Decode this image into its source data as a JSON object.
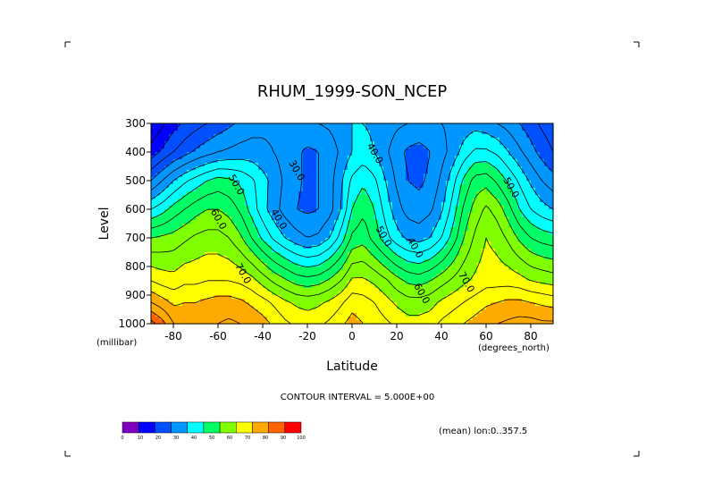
{
  "chart_data": {
    "type": "heatmap",
    "title": "RHUM_1999-SON_NCEP",
    "xlabel": "Latitude",
    "ylabel": "Level",
    "xunits": "(degrees_north)",
    "yunits": "(millibar)",
    "xlim": [
      -90,
      90
    ],
    "ylim": [
      1000,
      300
    ],
    "xticks": [
      "-80",
      "-60",
      "-40",
      "-20",
      "0",
      "20",
      "40",
      "60",
      "80"
    ],
    "xtick_values": [
      -80,
      -60,
      -40,
      -20,
      0,
      20,
      40,
      60,
      80
    ],
    "yticks": [
      "300",
      "400",
      "500",
      "600",
      "700",
      "800",
      "900",
      "1000"
    ],
    "ytick_values": [
      300,
      400,
      500,
      600,
      700,
      800,
      900,
      1000
    ],
    "contour_interval_text": "CONTOUR INTERVAL = 5.000E+00",
    "mean_text": "(mean) lon:0..357.5",
    "contour_labels": [
      "30.0",
      "50.0",
      "40.0",
      "60.0",
      "40.0",
      "50.0",
      "40.0",
      "50.0",
      "70.0",
      "70.0",
      "60.0"
    ],
    "colorbar": {
      "ticks": [
        "0",
        "10",
        "20",
        "30",
        "40",
        "50",
        "60",
        "70",
        "80",
        "90",
        "100"
      ],
      "colors": [
        "#7f00bf",
        "#0000ff",
        "#0050ff",
        "#0096ff",
        "#00ffff",
        "#00ff64",
        "#7fff00",
        "#ffff00",
        "#ffaa00",
        "#ff6400",
        "#ff0000"
      ]
    },
    "latitudes": [
      -90,
      -85,
      -80,
      -75,
      -70,
      -65,
      -60,
      -55,
      -50,
      -45,
      -40,
      -35,
      -30,
      -25,
      -20,
      -15,
      -10,
      -5,
      0,
      5,
      10,
      15,
      20,
      25,
      30,
      35,
      40,
      45,
      50,
      55,
      60,
      65,
      70,
      75,
      80,
      85,
      90
    ],
    "levels": [
      1000,
      925,
      850,
      700,
      600,
      500,
      400,
      300
    ],
    "values": [
      [
        97,
        92,
        85,
        83,
        82,
        83,
        85,
        86,
        85,
        84,
        82,
        79,
        76,
        74,
        73,
        74,
        76,
        79,
        82,
        80,
        78,
        76,
        74,
        72,
        72,
        73,
        76,
        78,
        80,
        82,
        84,
        85,
        86,
        87,
        87,
        86,
        86
      ],
      [
        85,
        82,
        79,
        80,
        80,
        81,
        82,
        82,
        81,
        79,
        77,
        74,
        71,
        69,
        68,
        69,
        71,
        74,
        78,
        77,
        75,
        72,
        69,
        67,
        67,
        68,
        71,
        73,
        75,
        77,
        79,
        80,
        81,
        81,
        80,
        79,
        78
      ],
      [
        75,
        73,
        72,
        74,
        74,
        75,
        75,
        75,
        74,
        72,
        68,
        64,
        61,
        58,
        57,
        58,
        61,
        65,
        71,
        71,
        69,
        66,
        62,
        59,
        58,
        60,
        63,
        66,
        69,
        71,
        73,
        73,
        73,
        72,
        70,
        69,
        68
      ],
      [
        60,
        61,
        62,
        64,
        66,
        67,
        67,
        65,
        61,
        55,
        49,
        44,
        40,
        37,
        35,
        36,
        40,
        47,
        56,
        58,
        53,
        47,
        42,
        39,
        38,
        40,
        45,
        52,
        60,
        66,
        70,
        68,
        64,
        59,
        55,
        53,
        52
      ],
      [
        45,
        48,
        52,
        55,
        58,
        60,
        60,
        58,
        54,
        48,
        42,
        37,
        33,
        30,
        29,
        30,
        33,
        40,
        50,
        54,
        50,
        43,
        37,
        33,
        32,
        34,
        39,
        47,
        56,
        62,
        66,
        63,
        57,
        50,
        45,
        42,
        40
      ],
      [
        30,
        35,
        40,
        44,
        47,
        50,
        52,
        51,
        49,
        46,
        42,
        38,
        34,
        31,
        29,
        30,
        33,
        39,
        46,
        49,
        46,
        40,
        34,
        30,
        29,
        31,
        36,
        43,
        51,
        57,
        58,
        54,
        49,
        44,
        39,
        35,
        32
      ],
      [
        17,
        21,
        25,
        28,
        31,
        33,
        35,
        36,
        37,
        37,
        36,
        35,
        33,
        31,
        29,
        30,
        32,
        36,
        40,
        42,
        40,
        36,
        32,
        29,
        28,
        30,
        33,
        37,
        42,
        46,
        46,
        44,
        40,
        36,
        32,
        28,
        25
      ],
      [
        10,
        14,
        18,
        21,
        23,
        25,
        27,
        29,
        31,
        33,
        34,
        34,
        34,
        34,
        34,
        35,
        36,
        38,
        40,
        40,
        39,
        38,
        36,
        35,
        34,
        34,
        35,
        36,
        37,
        38,
        37,
        35,
        33,
        30,
        27,
        24,
        22
      ]
    ]
  }
}
